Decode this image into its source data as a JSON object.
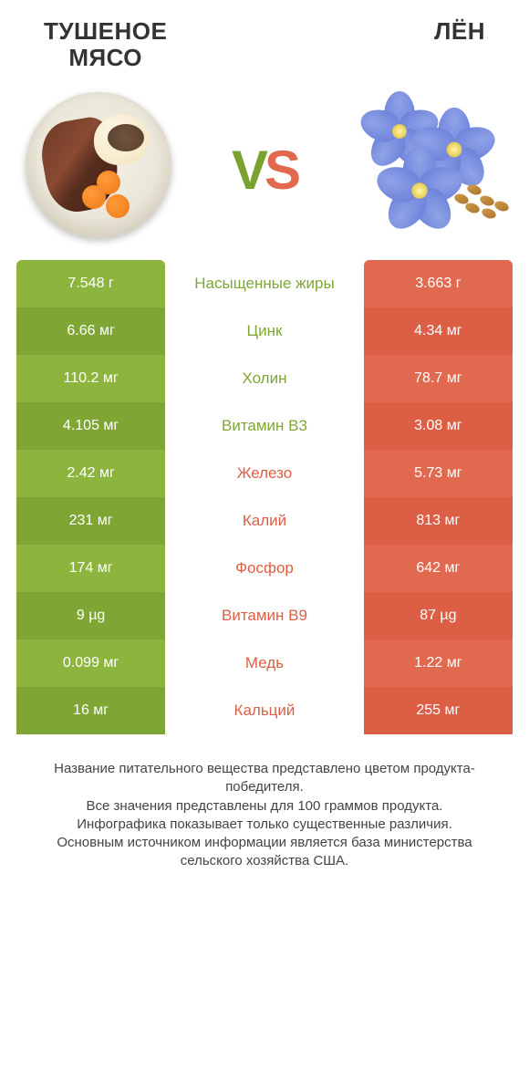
{
  "titles": {
    "left": "ТУШЕНОЕ\nМЯСО",
    "right": "ЛЁН"
  },
  "vs": {
    "v": "V",
    "s": "S"
  },
  "colors": {
    "green1": "#8db53e",
    "green2": "#7fa634",
    "orange1": "#e1694f",
    "orange2": "#dc5f45",
    "green_text": "#7fa634",
    "orange_text": "#dc5f45",
    "petal": "#8fa3e8",
    "petal_edge": "#6a7fd8"
  },
  "rows": [
    {
      "label": "Насыщенные жиры",
      "left": "7.548 г",
      "right": "3.663 г",
      "winner": "left"
    },
    {
      "label": "Цинк",
      "left": "6.66 мг",
      "right": "4.34 мг",
      "winner": "left"
    },
    {
      "label": "Холин",
      "left": "110.2 мг",
      "right": "78.7 мг",
      "winner": "left"
    },
    {
      "label": "Витамин B3",
      "left": "4.105 мг",
      "right": "3.08 мг",
      "winner": "left"
    },
    {
      "label": "Железо",
      "left": "2.42 мг",
      "right": "5.73 мг",
      "winner": "right"
    },
    {
      "label": "Калий",
      "left": "231 мг",
      "right": "813 мг",
      "winner": "right"
    },
    {
      "label": "Фосфор",
      "left": "174 мг",
      "right": "642 мг",
      "winner": "right"
    },
    {
      "label": "Витамин B9",
      "left": "9 µg",
      "right": "87 µg",
      "winner": "right"
    },
    {
      "label": "Медь",
      "left": "0.099 мг",
      "right": "1.22 мг",
      "winner": "right"
    },
    {
      "label": "Кальций",
      "left": "16 мг",
      "right": "255 мг",
      "winner": "right"
    }
  ],
  "footer": {
    "l1": "Название питательного вещества представлено цветом продукта-победителя.",
    "l2": "Все значения представлены для 100 граммов продукта.",
    "l3": "Инфографика показывает только существенные различия.",
    "l4": "Основным источником информации является база министерства сельского хозяйства США."
  }
}
